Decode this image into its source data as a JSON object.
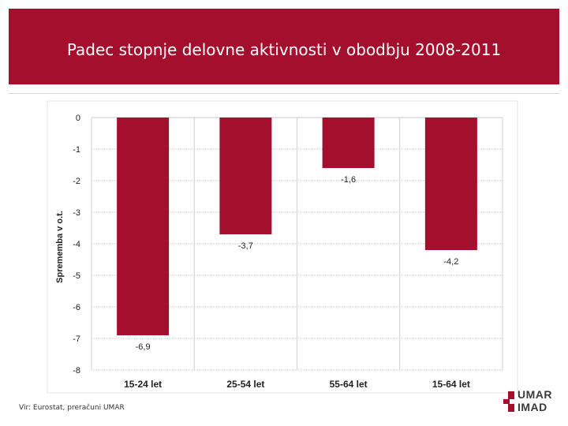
{
  "slide": {
    "title": "Padec stopnje delovne aktivnosti v obodbju 2008-2011",
    "source": "Vir: Eurostat, preračuni UMAR",
    "logo_line1": "UMAR",
    "logo_line2": "IMAD",
    "accent": "#a30f2c"
  },
  "chart_data": {
    "type": "bar",
    "title": "",
    "xlabel": "",
    "ylabel": "Sprememba v o.t.",
    "categories": [
      "15-24 let",
      "25-54 let",
      "55-64 let",
      "15-64 let"
    ],
    "values": [
      -6.9,
      -3.7,
      -1.6,
      -4.2
    ],
    "data_labels": [
      "-6,9",
      "-3,7",
      "-1,6",
      "-4,2"
    ],
    "ylim": [
      -8,
      0
    ],
    "yticks": [
      0,
      -1,
      -2,
      -3,
      -4,
      -5,
      -6,
      -7,
      -8
    ],
    "grid": true,
    "bar_color": "#a30f2c"
  }
}
